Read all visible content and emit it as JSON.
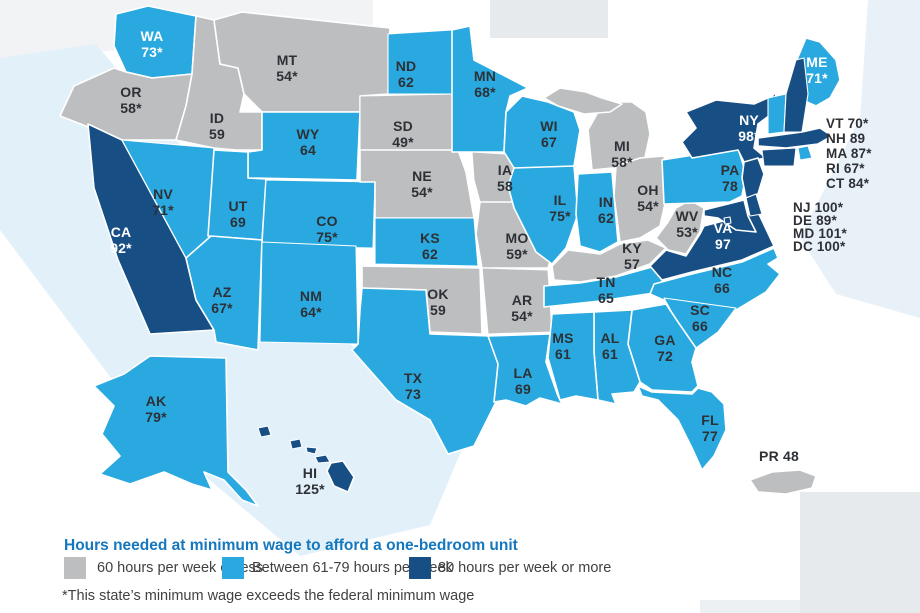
{
  "colors": {
    "gray": "#BDBEC0",
    "light": "#29A9E0",
    "dark": "#174E84",
    "label_dark": "#2D3136",
    "label_white": "#FFFFFF",
    "legend_title": "#1577BD",
    "legend_text": "#414042",
    "bg_gray": "#E7EAED",
    "bg_blue": "#E2F0FA"
  },
  "legend": {
    "title": "Hours needed at minimum wage to afford a one-bedroom unit",
    "items": [
      {
        "label": "60 hours per week or less",
        "color": "#BDBEC0",
        "category": "gray"
      },
      {
        "label": "Between 61-79 hours per week",
        "color": "#29A9E0",
        "category": "light"
      },
      {
        "label": "80 hours per week or more",
        "color": "#174E84",
        "category": "dark"
      }
    ],
    "footnote": "*This state’s minimum wage exceeds the federal minimum wage"
  },
  "map": {
    "states": [
      {
        "abbr": "WA",
        "value": "73*",
        "category": "light",
        "label": "map"
      },
      {
        "abbr": "OR",
        "value": "58*",
        "category": "gray",
        "label": "map"
      },
      {
        "abbr": "CA",
        "value": "92*",
        "category": "dark",
        "label": "map"
      },
      {
        "abbr": "NV",
        "value": "71*",
        "category": "light",
        "label": "map"
      },
      {
        "abbr": "ID",
        "value": "59",
        "category": "gray",
        "label": "map"
      },
      {
        "abbr": "MT",
        "value": "54*",
        "category": "gray",
        "label": "map"
      },
      {
        "abbr": "WY",
        "value": "64",
        "category": "light",
        "label": "map"
      },
      {
        "abbr": "UT",
        "value": "69",
        "category": "light",
        "label": "map"
      },
      {
        "abbr": "CO",
        "value": "75*",
        "category": "light",
        "label": "map"
      },
      {
        "abbr": "AZ",
        "value": "67*",
        "category": "light",
        "label": "map"
      },
      {
        "abbr": "NM",
        "value": "64*",
        "category": "light",
        "label": "map"
      },
      {
        "abbr": "ND",
        "value": "62",
        "category": "light",
        "label": "map"
      },
      {
        "abbr": "SD",
        "value": "49*",
        "category": "gray",
        "label": "map"
      },
      {
        "abbr": "NE",
        "value": "54*",
        "category": "gray",
        "label": "map"
      },
      {
        "abbr": "KS",
        "value": "62",
        "category": "light",
        "label": "map"
      },
      {
        "abbr": "OK",
        "value": "59",
        "category": "gray",
        "label": "map"
      },
      {
        "abbr": "TX",
        "value": "73",
        "category": "light",
        "label": "map"
      },
      {
        "abbr": "MN",
        "value": "68*",
        "category": "light",
        "label": "map"
      },
      {
        "abbr": "IA",
        "value": "58",
        "category": "gray",
        "label": "map"
      },
      {
        "abbr": "MO",
        "value": "59*",
        "category": "gray",
        "label": "map"
      },
      {
        "abbr": "AR",
        "value": "54*",
        "category": "gray",
        "label": "map"
      },
      {
        "abbr": "LA",
        "value": "69",
        "category": "light",
        "label": "map"
      },
      {
        "abbr": "WI",
        "value": "67",
        "category": "light",
        "label": "map"
      },
      {
        "abbr": "IL",
        "value": "75*",
        "category": "light",
        "label": "map"
      },
      {
        "abbr": "IN",
        "value": "62",
        "category": "light",
        "label": "map"
      },
      {
        "abbr": "MI",
        "value": "58*",
        "category": "gray",
        "label": "map"
      },
      {
        "abbr": "OH",
        "value": "54*",
        "category": "gray",
        "label": "map"
      },
      {
        "abbr": "KY",
        "value": "57",
        "category": "gray",
        "label": "map"
      },
      {
        "abbr": "TN",
        "value": "65",
        "category": "light",
        "label": "map"
      },
      {
        "abbr": "WV",
        "value": "53*",
        "category": "gray",
        "label": "map"
      },
      {
        "abbr": "VA",
        "value": "97",
        "category": "dark",
        "label": "map"
      },
      {
        "abbr": "NC",
        "value": "66",
        "category": "light",
        "label": "map"
      },
      {
        "abbr": "SC",
        "value": "66",
        "category": "light",
        "label": "map"
      },
      {
        "abbr": "GA",
        "value": "72",
        "category": "light",
        "label": "map"
      },
      {
        "abbr": "AL",
        "value": "61",
        "category": "light",
        "label": "map"
      },
      {
        "abbr": "MS",
        "value": "61",
        "category": "light",
        "label": "map"
      },
      {
        "abbr": "FL",
        "value": "77",
        "category": "light",
        "label": "map"
      },
      {
        "abbr": "PA",
        "value": "78",
        "category": "light",
        "label": "map"
      },
      {
        "abbr": "NY",
        "value": "98*",
        "category": "dark",
        "label": "map"
      },
      {
        "abbr": "ME",
        "value": "71*",
        "category": "light",
        "label": "map"
      },
      {
        "abbr": "VT",
        "value": "70*",
        "category": "light",
        "label": "side",
        "side_group": 0
      },
      {
        "abbr": "NH",
        "value": "89",
        "category": "dark",
        "label": "side",
        "side_group": 0
      },
      {
        "abbr": "MA",
        "value": "87*",
        "category": "dark",
        "label": "side",
        "side_group": 0
      },
      {
        "abbr": "RI",
        "value": "67*",
        "category": "light",
        "label": "side",
        "side_group": 0
      },
      {
        "abbr": "CT",
        "value": "84*",
        "category": "dark",
        "label": "side",
        "side_group": 0
      },
      {
        "abbr": "NJ",
        "value": "100*",
        "category": "dark",
        "label": "side",
        "side_group": 1
      },
      {
        "abbr": "DE",
        "value": "89*",
        "category": "dark",
        "label": "side",
        "side_group": 1
      },
      {
        "abbr": "MD",
        "value": "101*",
        "category": "dark",
        "label": "side",
        "side_group": 1
      },
      {
        "abbr": "DC",
        "value": "100*",
        "category": "dark",
        "label": "side",
        "side_group": 1
      },
      {
        "abbr": "AK",
        "value": "79*",
        "category": "light",
        "label": "map"
      },
      {
        "abbr": "HI",
        "value": "125*",
        "category": "dark",
        "label": "map"
      },
      {
        "abbr": "PR",
        "value": "48",
        "category": "gray",
        "label": "inline"
      }
    ]
  }
}
